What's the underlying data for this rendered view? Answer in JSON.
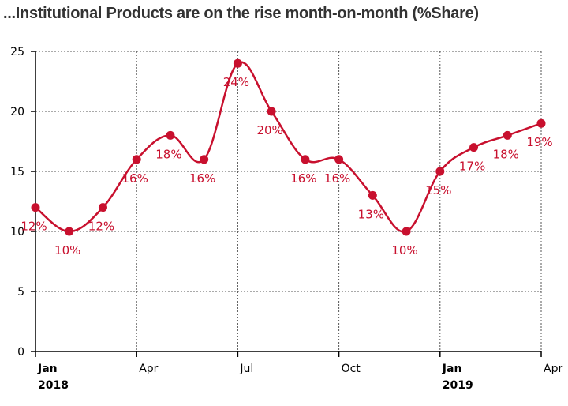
{
  "chart_data": {
    "type": "line",
    "title": "...Institutional Products are on the rise month-on-month (%Share)",
    "xlabel": "",
    "ylabel": "",
    "x": [
      "2018-01",
      "2018-02",
      "2018-03",
      "2018-04",
      "2018-05",
      "2018-06",
      "2018-07",
      "2018-08",
      "2018-09",
      "2018-10",
      "2018-11",
      "2018-12",
      "2019-01",
      "2019-02",
      "2019-03",
      "2019-04"
    ],
    "values": [
      12,
      10,
      12,
      16,
      18,
      16,
      24,
      20,
      16,
      16,
      13,
      10,
      15,
      17,
      18,
      19
    ],
    "data_labels": [
      "12%",
      "10%",
      "12%",
      "16%",
      "18%",
      "16%",
      "24%",
      "20%",
      "16%",
      "16%",
      "13%",
      "10%",
      "15%",
      "17%",
      "18%",
      "19%"
    ],
    "ylim": [
      0,
      25
    ],
    "y_ticks": [
      "0",
      "5",
      "10",
      "15",
      "20",
      "25"
    ],
    "x_ticks": [
      {
        "label": "Jan",
        "sub": "2018",
        "bold": true
      },
      {
        "label": "Apr",
        "sub": "",
        "bold": false
      },
      {
        "label": "Jul",
        "sub": "",
        "bold": false
      },
      {
        "label": "Oct",
        "sub": "",
        "bold": false
      },
      {
        "label": "Jan",
        "sub": "2019",
        "bold": true
      },
      {
        "label": "Apr",
        "sub": "",
        "bold": false
      }
    ],
    "grid": true,
    "line_color": "#c8102e"
  }
}
